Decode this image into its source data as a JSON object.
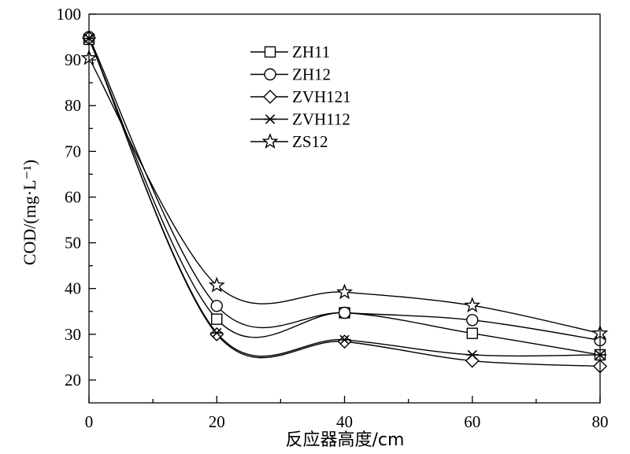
{
  "chart_data": {
    "type": "line",
    "title": "",
    "xlabel": "反应器高度/cm",
    "ylabel": "COD/(mg·L⁻¹)",
    "xlim": [
      0,
      80
    ],
    "ylim": [
      15,
      100
    ],
    "xticks": [
      0,
      20,
      40,
      60,
      80
    ],
    "yticks": [
      20,
      30,
      40,
      50,
      60,
      70,
      80,
      90,
      100
    ],
    "grid": false,
    "legend_position": "top-center",
    "x": [
      0,
      20,
      40,
      60,
      80
    ],
    "series": [
      {
        "name": "ZH11",
        "marker": "square",
        "values": [
          94.5,
          33.3,
          34.7,
          30.2,
          25.5
        ]
      },
      {
        "name": "ZH12",
        "marker": "circle",
        "values": [
          95.0,
          36.2,
          34.7,
          33.1,
          28.7
        ]
      },
      {
        "name": "ZVH121",
        "marker": "diamond",
        "values": [
          94.8,
          30.0,
          28.4,
          24.2,
          23.0
        ]
      },
      {
        "name": "ZVH112",
        "marker": "asterisk",
        "values": [
          94.7,
          30.3,
          28.8,
          25.5,
          25.5
        ]
      },
      {
        "name": "ZS12",
        "marker": "star",
        "values": [
          90.4,
          40.7,
          39.2,
          36.3,
          30.2
        ]
      }
    ]
  }
}
